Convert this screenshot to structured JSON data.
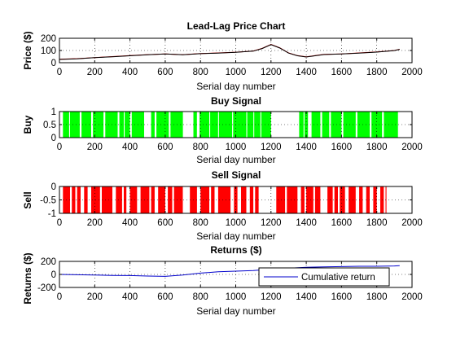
{
  "chart_data": [
    {
      "type": "line",
      "title": "Lead-Lag Price Chart",
      "xlabel": "Serial day number",
      "ylabel": "Price ($)",
      "xlim": [
        0,
        2000
      ],
      "ylim": [
        0,
        200
      ],
      "xticks": [
        "0",
        "200",
        "400",
        "600",
        "800",
        "1000",
        "1200",
        "1400",
        "1600",
        "1800",
        "2000"
      ],
      "yticks": [
        "0",
        "100",
        "200"
      ],
      "grid": true,
      "x": [
        0,
        100,
        200,
        300,
        400,
        500,
        600,
        700,
        800,
        900,
        1000,
        1100,
        1150,
        1200,
        1250,
        1300,
        1350,
        1400,
        1450,
        1500,
        1600,
        1700,
        1800,
        1900,
        1930
      ],
      "series": [
        {
          "color": "#cc0000",
          "values": [
            28,
            33,
            42,
            50,
            58,
            66,
            72,
            66,
            75,
            80,
            86,
            96,
            118,
            150,
            122,
            80,
            58,
            48,
            58,
            68,
            72,
            80,
            88,
            100,
            110
          ]
        },
        {
          "color": "#000000",
          "values": [
            27,
            32,
            41,
            49,
            57,
            65,
            71,
            65,
            74,
            79,
            85,
            95,
            116,
            148,
            120,
            79,
            57,
            47,
            57,
            67,
            71,
            79,
            87,
            99,
            109
          ]
        }
      ]
    },
    {
      "type": "bar",
      "title": "Buy Signal",
      "xlabel": "Serial day number",
      "ylabel": "Buy",
      "xlim": [
        0,
        2000
      ],
      "ylim": [
        0,
        1
      ],
      "xticks": [
        "0",
        "200",
        "400",
        "600",
        "800",
        "1000",
        "1200",
        "1400",
        "1600",
        "1800",
        "2000"
      ],
      "yticks": [
        "0",
        "0.5",
        "1"
      ],
      "grid": true,
      "color": "#00ff00",
      "value": 1,
      "intervals": [
        [
          20,
          55
        ],
        [
          60,
          115
        ],
        [
          125,
          180
        ],
        [
          190,
          250
        ],
        [
          260,
          330
        ],
        [
          340,
          365
        ],
        [
          370,
          400
        ],
        [
          410,
          480
        ],
        [
          520,
          540
        ],
        [
          550,
          620
        ],
        [
          630,
          700
        ],
        [
          760,
          780
        ],
        [
          795,
          850
        ],
        [
          855,
          900
        ],
        [
          905,
          980
        ],
        [
          985,
          1060
        ],
        [
          1065,
          1100
        ],
        [
          1105,
          1140
        ],
        [
          1145,
          1200
        ],
        [
          1360,
          1385
        ],
        [
          1390,
          1410
        ],
        [
          1430,
          1480
        ],
        [
          1490,
          1530
        ],
        [
          1540,
          1600
        ],
        [
          1610,
          1680
        ],
        [
          1690,
          1760
        ],
        [
          1770,
          1830
        ],
        [
          1840,
          1920
        ]
      ]
    },
    {
      "type": "bar",
      "title": "Sell Signal",
      "xlabel": "Serial day number",
      "ylabel": "Sell",
      "xlim": [
        0,
        2000
      ],
      "ylim": [
        -1,
        0
      ],
      "xticks": [
        "0",
        "200",
        "400",
        "600",
        "800",
        "1000",
        "1200",
        "1400",
        "1600",
        "1800",
        "2000"
      ],
      "yticks": [
        "0",
        "-0.5",
        "-1"
      ],
      "grid": true,
      "color": "#ff0000",
      "value": -1,
      "intervals": [
        [
          20,
          60
        ],
        [
          70,
          90
        ],
        [
          100,
          120
        ],
        [
          140,
          160
        ],
        [
          180,
          230
        ],
        [
          240,
          300
        ],
        [
          320,
          355
        ],
        [
          365,
          380
        ],
        [
          400,
          440
        ],
        [
          460,
          510
        ],
        [
          520,
          540
        ],
        [
          560,
          600
        ],
        [
          615,
          640
        ],
        [
          650,
          700
        ],
        [
          740,
          780
        ],
        [
          800,
          850
        ],
        [
          860,
          880
        ],
        [
          900,
          970
        ],
        [
          990,
          1010
        ],
        [
          1030,
          1060
        ],
        [
          1080,
          1100
        ],
        [
          1110,
          1130
        ],
        [
          1230,
          1280
        ],
        [
          1290,
          1350
        ],
        [
          1370,
          1390
        ],
        [
          1400,
          1440
        ],
        [
          1450,
          1480
        ],
        [
          1520,
          1550
        ],
        [
          1560,
          1580
        ],
        [
          1590,
          1620
        ],
        [
          1640,
          1680
        ],
        [
          1700,
          1720
        ],
        [
          1740,
          1760
        ],
        [
          1780,
          1800
        ],
        [
          1820,
          1840
        ],
        [
          1850,
          1855
        ]
      ]
    },
    {
      "type": "line",
      "title": "Returns ($)",
      "xlabel": "Serial day number",
      "ylabel": "Returns ($)",
      "xlim": [
        0,
        2000
      ],
      "ylim": [
        -200,
        200
      ],
      "xticks": [
        "0",
        "200",
        "400",
        "600",
        "800",
        "1000",
        "1200",
        "1400",
        "1600",
        "1800",
        "2000"
      ],
      "yticks": [
        "-200",
        "0",
        "200"
      ],
      "grid": true,
      "legend": {
        "placement": "bottom-right"
      },
      "x": [
        0,
        100,
        200,
        300,
        400,
        500,
        600,
        700,
        800,
        900,
        1000,
        1100,
        1200,
        1300,
        1400,
        1500,
        1600,
        1700,
        1800,
        1900,
        1930
      ],
      "series": [
        {
          "name": "Cumulative return",
          "color": "#0000cc",
          "values": [
            0,
            -5,
            -10,
            -15,
            -18,
            -25,
            -30,
            -10,
            20,
            40,
            50,
            60,
            80,
            95,
            110,
            115,
            120,
            125,
            125,
            130,
            135
          ]
        }
      ]
    }
  ]
}
